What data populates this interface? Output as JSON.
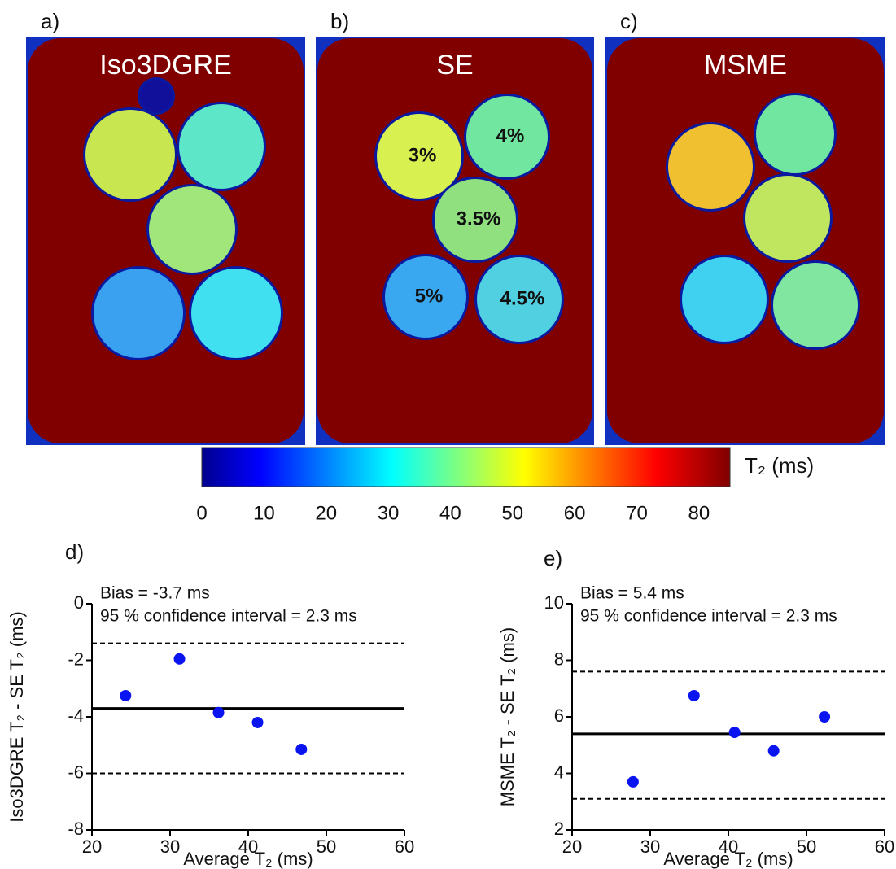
{
  "panels": [
    {
      "label": "a)",
      "title": "Iso3DGRE"
    },
    {
      "label": "b)",
      "title": "SE",
      "annotations": [
        "3%",
        "4%",
        "3.5%",
        "5%",
        "4.5%"
      ]
    },
    {
      "label": "c)",
      "title": "MSME"
    }
  ],
  "colorbar": {
    "label": "T₂ (ms)",
    "lim": [
      0,
      85
    ],
    "ticks": [
      0,
      10,
      20,
      30,
      40,
      50,
      60,
      70,
      80
    ]
  },
  "chart_data": [
    {
      "type": "scatter",
      "panel_label": "d)",
      "xlabel": "Average T₂ (ms)",
      "ylabel": "Iso3DGRE T₂ - SE T₂  (ms)",
      "annotations": [
        "Bias = -3.7 ms",
        "95 % confidence interval  = 2.3 ms"
      ],
      "x": [
        24.3,
        31.2,
        36.2,
        41.2,
        46.8
      ],
      "values": [
        -3.25,
        -1.95,
        -3.85,
        -4.2,
        -5.15
      ],
      "color": "#0a14f0",
      "hlines": [
        {
          "value": -3.7,
          "style": "solid"
        },
        {
          "value": -1.4,
          "style": "dashed"
        },
        {
          "value": -6.0,
          "style": "dashed"
        }
      ],
      "xlim": [
        20,
        60
      ],
      "xticks": [
        20,
        30,
        40,
        50,
        60
      ],
      "ylim": [
        -8,
        0
      ],
      "yticks": [
        -8,
        -6,
        -4,
        -2,
        0
      ]
    },
    {
      "type": "scatter",
      "panel_label": "e)",
      "xlabel": "Average T₂ (ms)",
      "ylabel": "MSME T₂ - SE T₂ (ms)",
      "annotations": [
        "Bias = 5.4 ms",
        "95 % confidence interval  = 2.3 ms"
      ],
      "x": [
        27.8,
        35.6,
        40.8,
        45.8,
        52.3
      ],
      "values": [
        3.7,
        6.75,
        5.45,
        4.8,
        6.0
      ],
      "color": "#0a14f0",
      "hlines": [
        {
          "value": 5.4,
          "style": "solid"
        },
        {
          "value": 7.6,
          "style": "dashed"
        },
        {
          "value": 3.1,
          "style": "dashed"
        }
      ],
      "xlim": [
        20,
        60
      ],
      "xticks": [
        20,
        30,
        40,
        50,
        60
      ],
      "ylim": [
        2,
        10
      ],
      "yticks": [
        2,
        4,
        6,
        8,
        10
      ]
    }
  ]
}
